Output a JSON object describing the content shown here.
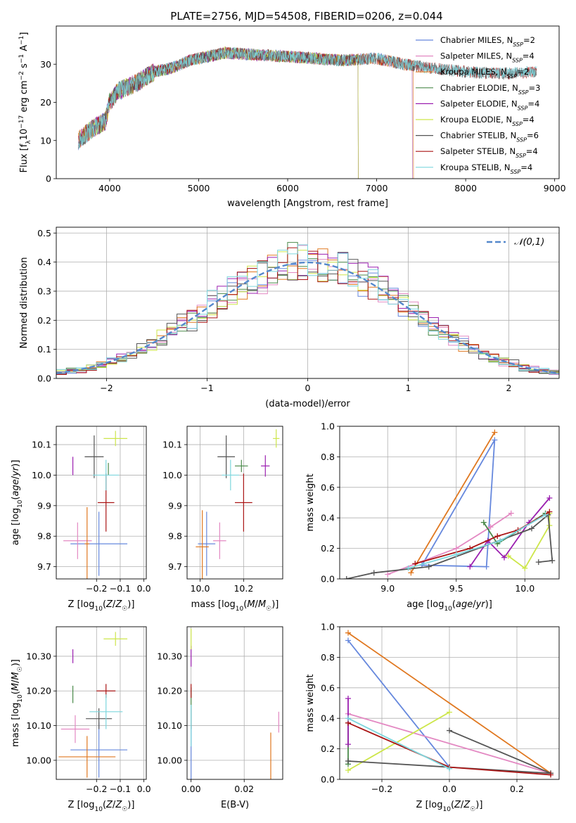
{
  "figure": {
    "title": "PLATE=2756, MJD=54508, FIBERID=0206, z=0.044"
  },
  "colors": {
    "Chabrier MILES": "#6688dd",
    "Salpeter MILES": "#e388c2",
    "Kroupa MILES": "#e07820",
    "Chabrier ELODIE": "#4a8a4a",
    "Salpeter ELODIE": "#9b1fb0",
    "Kroupa ELODIE": "#cde64a",
    "Chabrier STELIB": "#555555",
    "Salpeter STELIB": "#aa1515",
    "Kroupa STELIB": "#7dd6dd"
  },
  "chart_data": [
    {
      "id": "spectrum",
      "type": "line",
      "title": "PLATE=2756, MJD=54508, FIBERID=0206, z=0.044",
      "xlabel": "wavelength [Angstrom, rest frame]",
      "ylabel": "Flux [f_λ 10^-17 erg cm^-2 s^-1 A^-1]",
      "xlim": [
        3400,
        9050
      ],
      "ylim": [
        0,
        40
      ],
      "xticks": [
        4000,
        5000,
        6000,
        7000,
        8000,
        9000
      ],
      "yticks": [
        0,
        10,
        20,
        30
      ],
      "legend_position": "top-right",
      "legend": [
        {
          "model": "Chabrier MILES",
          "label": "Chabrier MILES, N",
          "sub": "SSP",
          "post": "=2"
        },
        {
          "model": "Salpeter MILES",
          "label": "Salpeter MILES, N",
          "sub": "SSP",
          "post": "=4"
        },
        {
          "model": "Kroupa MILES",
          "label": "Kroupa MILES, N",
          "sub": "SSP",
          "post": "=2"
        },
        {
          "model": "Chabrier ELODIE",
          "label": "Chabrier ELODIE, N",
          "sub": "SSP",
          "post": "=3"
        },
        {
          "model": "Salpeter ELODIE",
          "label": "Salpeter ELODIE, N",
          "sub": "SSP",
          "post": "=4"
        },
        {
          "model": "Kroupa ELODIE",
          "label": "Kroupa ELODIE, N",
          "sub": "SSP",
          "post": "=4"
        },
        {
          "model": "Chabrier STELIB",
          "label": "Chabrier STELIB, N",
          "sub": "SSP",
          "post": "=6"
        },
        {
          "model": "Salpeter STELIB",
          "label": "Salpeter STELIB, N",
          "sub": "SSP",
          "post": "=4"
        },
        {
          "model": "Kroupa STELIB",
          "label": "Kroupa STELIB, N",
          "sub": "SSP",
          "post": "=4"
        }
      ],
      "continuum": [
        [
          3650,
          10
        ],
        [
          3800,
          13
        ],
        [
          3950,
          15
        ],
        [
          4000,
          20
        ],
        [
          4100,
          23
        ],
        [
          4300,
          25
        ],
        [
          4500,
          28
        ],
        [
          4700,
          29
        ],
        [
          4900,
          31
        ],
        [
          5100,
          32
        ],
        [
          5300,
          33
        ],
        [
          5600,
          32.5
        ],
        [
          6000,
          32
        ],
        [
          6300,
          31.5
        ],
        [
          6600,
          31
        ],
        [
          7000,
          31.5
        ],
        [
          7300,
          30
        ],
        [
          7600,
          29
        ],
        [
          8000,
          28
        ],
        [
          8400,
          27.5
        ],
        [
          8800,
          28
        ]
      ],
      "model_ranges": {
        "Chabrier MILES": [
          3650,
          7400
        ],
        "Salpeter MILES": [
          3650,
          7400
        ],
        "Kroupa MILES": [
          3650,
          7410
        ],
        "Chabrier ELODIE": [
          3650,
          6790
        ],
        "Salpeter ELODIE": [
          3650,
          6790
        ],
        "Kroupa ELODIE": [
          3650,
          6790
        ],
        "Chabrier STELIB": [
          3650,
          8800
        ],
        "Salpeter STELIB": [
          3650,
          8800
        ],
        "Kroupa STELIB": [
          3650,
          8800
        ]
      }
    },
    {
      "id": "residuals",
      "type": "step",
      "xlabel": "(data-model)/error",
      "ylabel": "Normed distribution",
      "xlim": [
        -2.5,
        2.5
      ],
      "ylim": [
        0,
        0.52
      ],
      "xticks": [
        -2,
        -1,
        0,
        1,
        2
      ],
      "yticks": [
        0.0,
        0.1,
        0.2,
        0.3,
        0.4,
        0.5
      ],
      "bin_width": 0.1,
      "legend_position": "top-right",
      "reference_curve": {
        "label": "𝒩(0,1)",
        "mean": 0,
        "sigma": 1,
        "color": "#5588cc"
      }
    },
    {
      "id": "age-Z",
      "type": "scatter",
      "xlabel": "Z [log10(Z/Z☉)]",
      "ylabel": "age [log10(age/yr)]",
      "xlim": [
        -0.37,
        0.01
      ],
      "ylim": [
        9.66,
        10.16
      ],
      "xticks": [
        -0.2,
        -0.1,
        0.0
      ],
      "yticks": [
        9.7,
        9.8,
        9.9,
        10.0,
        10.1
      ],
      "points": [
        {
          "model": "Chabrier MILES",
          "x": -0.19,
          "xerr": 0.12,
          "y": 9.775,
          "yerr": 0.105
        },
        {
          "model": "Salpeter MILES",
          "x": -0.28,
          "xerr": 0.06,
          "y": 9.785,
          "yerr": 0.06
        },
        {
          "model": "Kroupa MILES",
          "x": -0.24,
          "xerr": 0.01,
          "y": 9.775,
          "yerr": 0.12
        },
        {
          "model": "Chabrier ELODIE",
          "x": -0.15,
          "xerr": 0.0,
          "y": 10.02,
          "yerr": 0.02
        },
        {
          "model": "Salpeter ELODIE",
          "x": -0.3,
          "xerr": 0.0,
          "y": 10.03,
          "yerr": 0.03
        },
        {
          "model": "Kroupa ELODIE",
          "x": -0.12,
          "xerr": 0.05,
          "y": 10.12,
          "yerr": 0.025
        },
        {
          "model": "Chabrier STELIB",
          "x": -0.21,
          "xerr": 0.04,
          "y": 10.06,
          "yerr": 0.07
        },
        {
          "model": "Salpeter STELIB",
          "x": -0.16,
          "xerr": 0.035,
          "y": 9.91,
          "yerr": 0.095
        },
        {
          "model": "Kroupa STELIB",
          "x": -0.16,
          "xerr": 0.055,
          "y": 10.0,
          "yerr": 0.05
        }
      ]
    },
    {
      "id": "age-mass",
      "type": "scatter",
      "xlabel": "mass [log10(M/M☉)]",
      "ylabel": "",
      "xlim": [
        9.94,
        10.38
      ],
      "ylim": [
        9.66,
        10.16
      ],
      "xticks": [
        10.0,
        10.2
      ],
      "yticks": [
        9.7,
        9.8,
        9.9,
        10.0,
        10.1
      ],
      "points": [
        {
          "model": "Chabrier MILES",
          "x": 10.03,
          "xerr": 0.04,
          "y": 9.775,
          "yerr": 0.105
        },
        {
          "model": "Salpeter MILES",
          "x": 10.09,
          "xerr": 0.03,
          "y": 9.785,
          "yerr": 0.06
        },
        {
          "model": "Kroupa MILES",
          "x": 10.01,
          "xerr": 0.03,
          "y": 9.765,
          "yerr": 0.12
        },
        {
          "model": "Chabrier ELODIE",
          "x": 10.19,
          "xerr": 0.03,
          "y": 10.03,
          "yerr": 0.02
        },
        {
          "model": "Salpeter ELODIE",
          "x": 10.3,
          "xerr": 0.02,
          "y": 10.03,
          "yerr": 0.035
        },
        {
          "model": "Kroupa ELODIE",
          "x": 10.35,
          "xerr": 0.015,
          "y": 10.12,
          "yerr": 0.03
        },
        {
          "model": "Chabrier STELIB",
          "x": 10.12,
          "xerr": 0.04,
          "y": 10.06,
          "yerr": 0.07
        },
        {
          "model": "Salpeter STELIB",
          "x": 10.2,
          "xerr": 0.04,
          "y": 9.91,
          "yerr": 0.095
        },
        {
          "model": "Kroupa STELIB",
          "x": 10.14,
          "xerr": 0.04,
          "y": 10.0,
          "yerr": 0.05
        }
      ]
    },
    {
      "id": "weight-age",
      "type": "line",
      "xlabel": "age [log10(age/yr)]",
      "ylabel": "mass weight",
      "xlim": [
        8.65,
        10.25
      ],
      "ylim": [
        0,
        1.0
      ],
      "xticks": [
        9.0,
        9.5,
        10.0
      ],
      "yticks": [
        0.0,
        0.2,
        0.4,
        0.6,
        0.8,
        1.0
      ],
      "series": [
        {
          "model": "Chabrier MILES",
          "x": [
            9.25,
            9.72,
            9.78,
            9.25
          ],
          "y": [
            0.09,
            0.08,
            0.91,
            0.09
          ]
        },
        {
          "model": "Salpeter MILES",
          "x": [
            9.0,
            9.5,
            9.75,
            9.9
          ],
          "y": [
            0.03,
            0.2,
            0.34,
            0.43
          ]
        },
        {
          "model": "Kroupa MILES",
          "x": [
            9.17,
            9.78
          ],
          "y": [
            0.04,
            0.96
          ]
        },
        {
          "model": "Chabrier ELODIE",
          "x": [
            9.7,
            9.8,
            10.15
          ],
          "y": [
            0.37,
            0.23,
            0.43
          ]
        },
        {
          "model": "Salpeter ELODIE",
          "x": [
            9.6,
            9.73,
            9.85,
            10.03,
            10.18
          ],
          "y": [
            0.08,
            0.25,
            0.14,
            0.37,
            0.53
          ]
        },
        {
          "model": "Kroupa ELODIE",
          "x": [
            9.88,
            10.0,
            10.18,
            10.18
          ],
          "y": [
            0.15,
            0.07,
            0.35,
            0.43
          ]
        },
        {
          "model": "Chabrier STELIB",
          "x": [
            8.7,
            8.9,
            9.3,
            10.05,
            10.17,
            10.2,
            10.1
          ],
          "y": [
            0.0,
            0.04,
            0.08,
            0.33,
            0.42,
            0.12,
            0.11
          ]
        },
        {
          "model": "Salpeter STELIB",
          "x": [
            9.2,
            9.6,
            9.8,
            9.95,
            10.18
          ],
          "y": [
            0.1,
            0.2,
            0.28,
            0.32,
            0.44
          ]
        },
        {
          "model": "Kroupa STELIB",
          "x": [
            9.15,
            9.5,
            9.82,
            10.15
          ],
          "y": [
            0.07,
            0.16,
            0.25,
            0.42
          ]
        }
      ]
    },
    {
      "id": "mass-Z",
      "type": "scatter",
      "xlabel": "Z [log10(Z/Z☉)]",
      "ylabel": "mass [log10(M/M☉)]",
      "xlim": [
        -0.37,
        0.01
      ],
      "ylim": [
        9.945,
        10.385
      ],
      "xticks": [
        -0.2,
        -0.1,
        0.0
      ],
      "yticks": [
        10.0,
        10.1,
        10.2,
        10.3
      ],
      "points": [
        {
          "model": "Chabrier MILES",
          "x": -0.19,
          "xerr": 0.12,
          "y": 10.03,
          "yerr": 0.08
        },
        {
          "model": "Salpeter MILES",
          "x": -0.29,
          "xerr": 0.06,
          "y": 10.09,
          "yerr": 0.04
        },
        {
          "model": "Kroupa MILES",
          "x": -0.24,
          "xerr": 0.12,
          "y": 10.01,
          "yerr": 0.06
        },
        {
          "model": "Chabrier ELODIE",
          "x": -0.3,
          "xerr": 0.0,
          "y": 10.19,
          "yerr": 0.025
        },
        {
          "model": "Salpeter ELODIE",
          "x": -0.3,
          "xerr": 0.0,
          "y": 10.3,
          "yerr": 0.02
        },
        {
          "model": "Kroupa ELODIE",
          "x": -0.12,
          "xerr": 0.05,
          "y": 10.35,
          "yerr": 0.02
        },
        {
          "model": "Chabrier STELIB",
          "x": -0.19,
          "xerr": 0.055,
          "y": 10.12,
          "yerr": 0.03
        },
        {
          "model": "Salpeter STELIB",
          "x": -0.16,
          "xerr": 0.04,
          "y": 10.2,
          "yerr": 0.02
        },
        {
          "model": "Kroupa STELIB",
          "x": -0.16,
          "xerr": 0.07,
          "y": 10.14,
          "yerr": 0.05
        }
      ]
    },
    {
      "id": "mass-EBV",
      "type": "scatter",
      "xlabel": "E(B-V)",
      "ylabel": "",
      "xlim": [
        -0.0015,
        0.0345
      ],
      "ylim": [
        9.945,
        10.385
      ],
      "xticks": [
        0.0,
        0.02
      ],
      "yticks": [
        10.0,
        10.1,
        10.2,
        10.3
      ],
      "points": [
        {
          "model": "Chabrier MILES",
          "x": 0.0,
          "xerr": 0.0,
          "y": 10.02,
          "yerr": 0.08
        },
        {
          "model": "Salpeter MILES",
          "x": 0.033,
          "xerr": 0.0,
          "y": 10.11,
          "yerr": 0.03
        },
        {
          "model": "Kroupa MILES",
          "x": 0.03,
          "xerr": 0.0,
          "y": 10.0,
          "yerr": 0.08
        },
        {
          "model": "Chabrier ELODIE",
          "x": 0.0,
          "xerr": 0.0,
          "y": 10.18,
          "yerr": 0.03
        },
        {
          "model": "Salpeter ELODIE",
          "x": 0.0,
          "xerr": 0.0,
          "y": 10.3,
          "yerr": 0.03
        },
        {
          "model": "Kroupa ELODIE",
          "x": 0.0,
          "xerr": 0.0,
          "y": 10.35,
          "yerr": 0.03
        },
        {
          "model": "Chabrier STELIB",
          "x": 0.0,
          "xerr": 0.0,
          "y": 10.12,
          "yerr": 0.03
        },
        {
          "model": "Salpeter STELIB",
          "x": 0.0,
          "xerr": 0.0,
          "y": 10.2,
          "yerr": 0.02
        },
        {
          "model": "Kroupa STELIB",
          "x": 0.0,
          "xerr": 0.0,
          "y": 10.1,
          "yerr": 0.06
        }
      ]
    },
    {
      "id": "weight-Z",
      "type": "line",
      "xlabel": "Z [log10(Z/Z☉)]",
      "ylabel": "mass weight",
      "xlim": [
        -0.325,
        0.325
      ],
      "ylim": [
        0,
        1.0
      ],
      "xticks": [
        -0.2,
        0.0,
        0.2
      ],
      "yticks": [
        0.0,
        0.2,
        0.4,
        0.6,
        0.8,
        1.0
      ],
      "series": [
        {
          "model": "Chabrier MILES",
          "x": [
            -0.3,
            0.0
          ],
          "y": [
            0.91,
            0.08
          ]
        },
        {
          "model": "Salpeter MILES",
          "x": [
            -0.3,
            0.3
          ],
          "y": [
            0.43,
            0.04
          ]
        },
        {
          "model": "Kroupa MILES",
          "x": [
            -0.3,
            0.3
          ],
          "y": [
            0.96,
            0.04
          ]
        },
        {
          "model": "Chabrier ELODIE",
          "x": [
            -0.3,
            -0.3
          ],
          "y": [
            0.1,
            0.37
          ]
        },
        {
          "model": "Salpeter ELODIE",
          "x": [
            -0.3,
            -0.3
          ],
          "y": [
            0.23,
            0.53
          ]
        },
        {
          "model": "Kroupa ELODIE",
          "x": [
            -0.3,
            0.0
          ],
          "y": [
            0.06,
            0.44
          ]
        },
        {
          "model": "Chabrier STELIB",
          "x": [
            -0.3,
            0.0,
            0.3,
            0.0
          ],
          "y": [
            0.12,
            0.08,
            0.04,
            0.32
          ]
        },
        {
          "model": "Salpeter STELIB",
          "x": [
            -0.3,
            0.0,
            0.3
          ],
          "y": [
            0.37,
            0.08,
            0.03
          ]
        },
        {
          "model": "Kroupa STELIB",
          "x": [
            -0.3,
            0.0
          ],
          "y": [
            0.4,
            0.07
          ]
        }
      ]
    }
  ]
}
